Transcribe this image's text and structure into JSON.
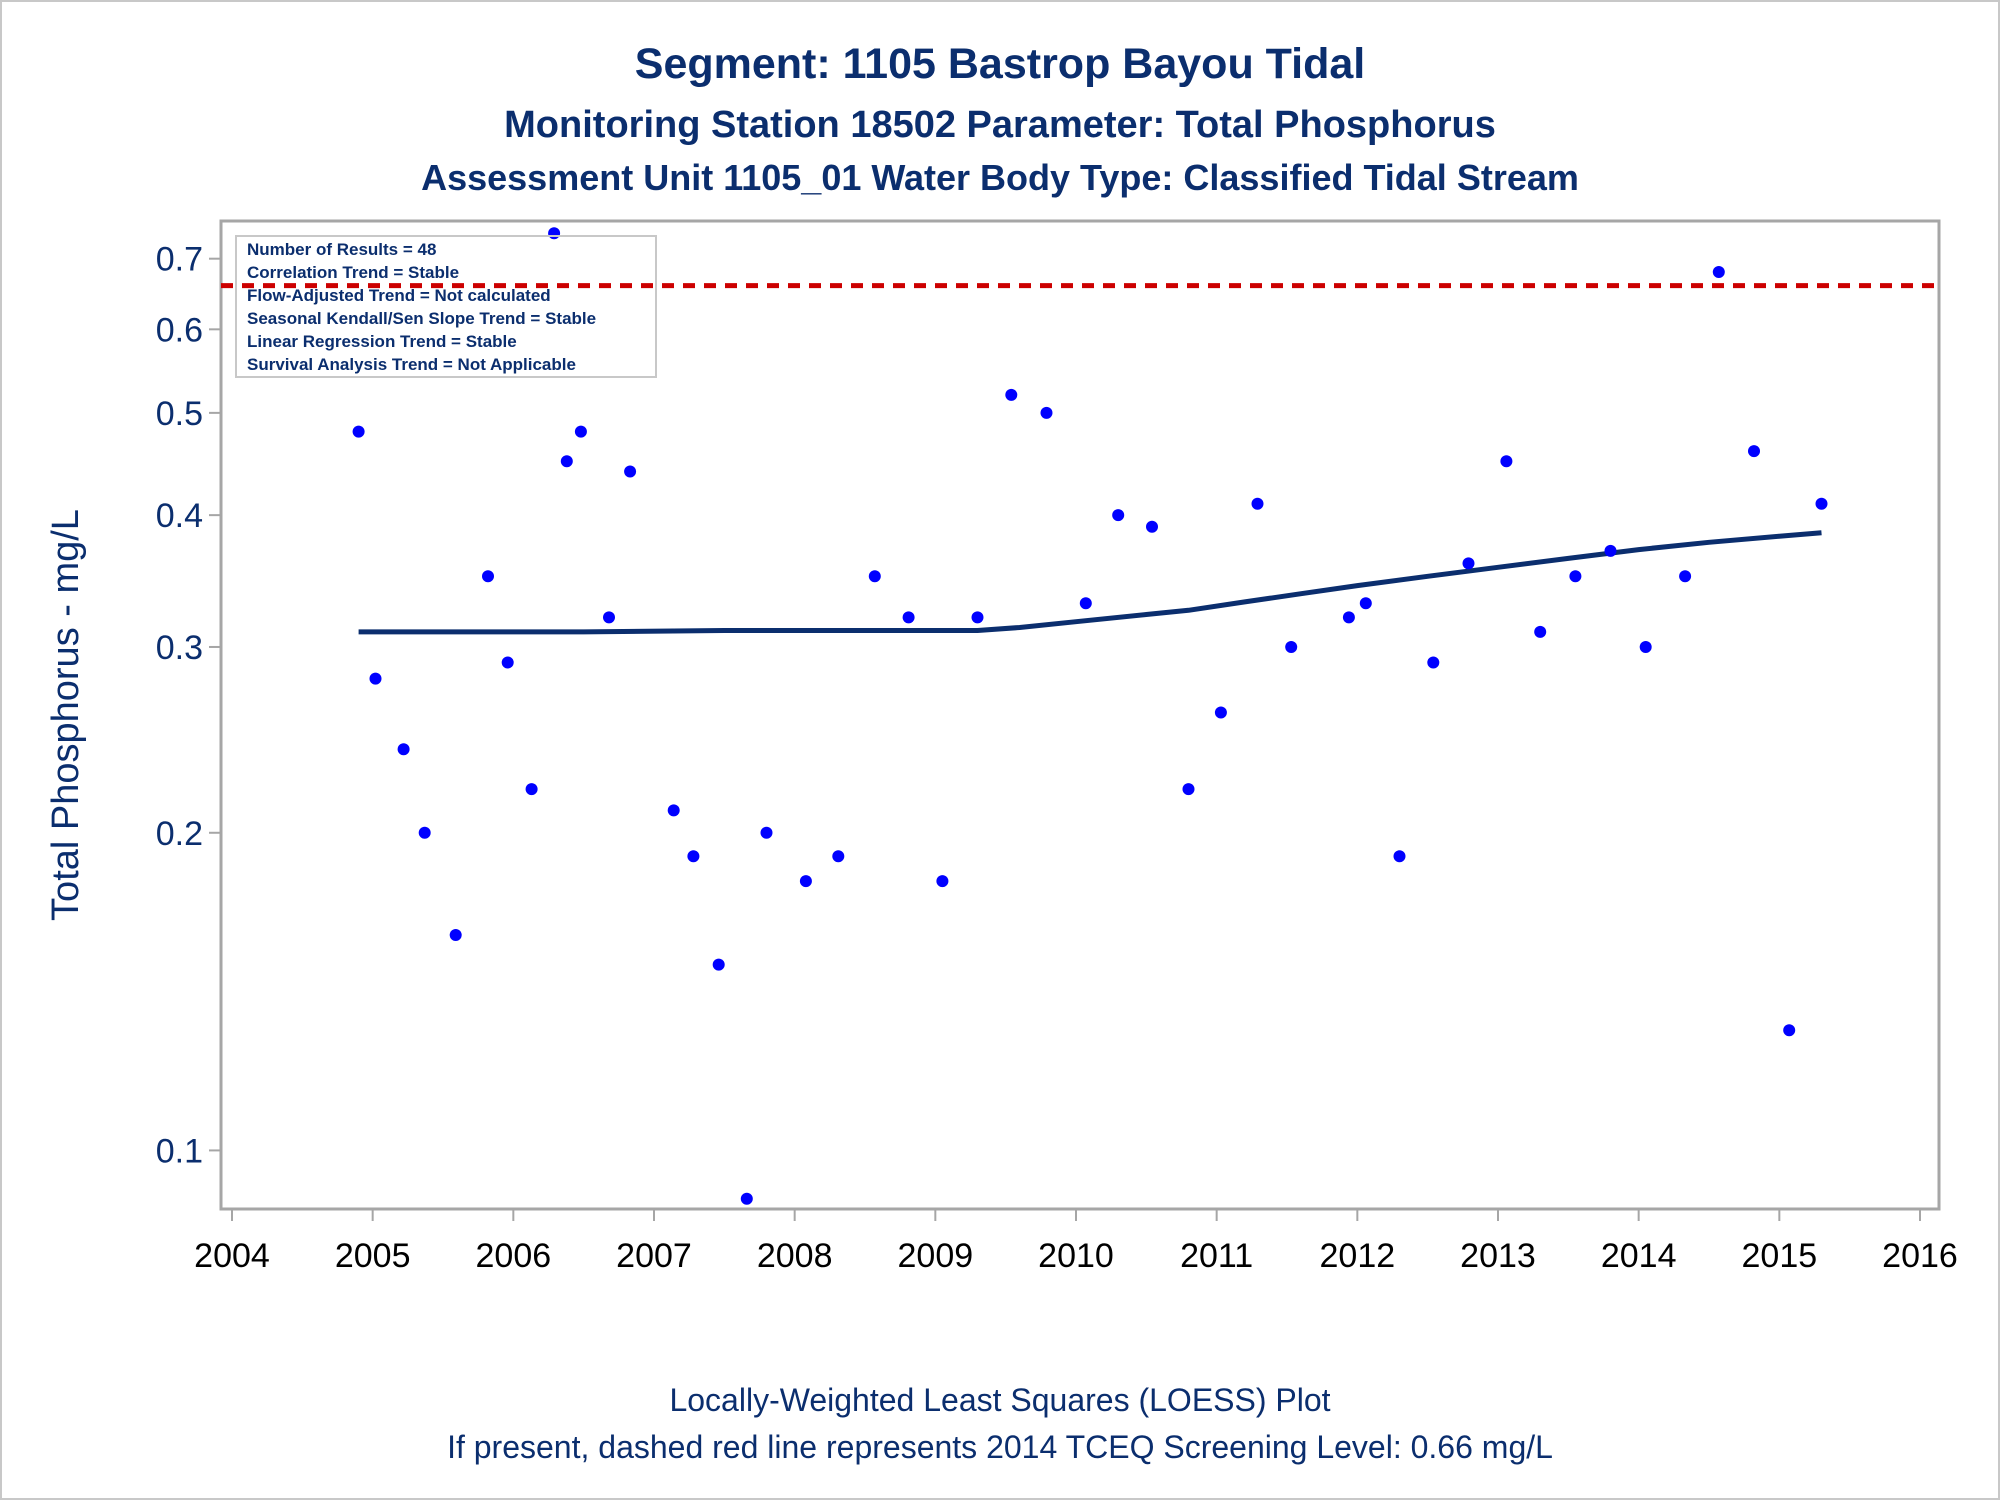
{
  "chart_data": {
    "type": "scatter",
    "title": "Segment: 1105  Bastrop Bayou Tidal",
    "subtitle": "Monitoring Station 18502 Parameter: Total Phosphorus",
    "subtitle2": "Assessment Unit 1105_01   Water Body Type: Classified Tidal Stream",
    "xlabel": "",
    "ylabel": "Total Phosphorus - mg/L",
    "y_scale": "log",
    "xlim": [
      2004,
      2016
    ],
    "ylim": [
      0.088,
      0.76
    ],
    "x_ticks": [
      "2004",
      "2005",
      "2006",
      "2007",
      "2008",
      "2009",
      "2010",
      "2011",
      "2012",
      "2013",
      "2014",
      "2015",
      "2016"
    ],
    "y_ticks": [
      {
        "value": 0.1,
        "label": "0.1"
      },
      {
        "value": 0.2,
        "label": "0.2"
      },
      {
        "value": 0.3,
        "label": "0.3"
      },
      {
        "value": 0.4,
        "label": "0.4"
      },
      {
        "value": 0.5,
        "label": "0.5"
      },
      {
        "value": 0.6,
        "label": "0.6"
      },
      {
        "value": 0.7,
        "label": "0.7"
      }
    ],
    "screening_level": 0.66,
    "stats_box": [
      "Number of Results = 48",
      "Correlation Trend = Stable",
      "Flow-Adjusted Trend = Not calculated",
      "Seasonal Kendall/Sen Slope Trend = Stable",
      "Linear Regression Trend = Stable",
      "Survival Analysis Trend = Not Applicable"
    ],
    "footer": [
      "Locally-Weighted Least Squares (LOESS) Plot",
      "If present, dashed red line represents 2014 TCEQ Screening Level: 0.66 mg/L"
    ],
    "points": [
      {
        "x": 2004.9,
        "y": 0.48
      },
      {
        "x": 2005.02,
        "y": 0.28
      },
      {
        "x": 2005.22,
        "y": 0.24
      },
      {
        "x": 2005.37,
        "y": 0.2
      },
      {
        "x": 2005.59,
        "y": 0.16
      },
      {
        "x": 2005.82,
        "y": 0.35
      },
      {
        "x": 2005.96,
        "y": 0.29
      },
      {
        "x": 2006.13,
        "y": 0.22
      },
      {
        "x": 2006.29,
        "y": 0.74
      },
      {
        "x": 2006.38,
        "y": 0.45
      },
      {
        "x": 2006.48,
        "y": 0.48
      },
      {
        "x": 2006.68,
        "y": 0.32
      },
      {
        "x": 2006.83,
        "y": 0.44
      },
      {
        "x": 2007.14,
        "y": 0.21
      },
      {
        "x": 2007.28,
        "y": 0.19
      },
      {
        "x": 2007.46,
        "y": 0.15
      },
      {
        "x": 2007.66,
        "y": 0.09
      },
      {
        "x": 2007.8,
        "y": 0.2
      },
      {
        "x": 2008.08,
        "y": 0.18
      },
      {
        "x": 2008.31,
        "y": 0.19
      },
      {
        "x": 2008.57,
        "y": 0.35
      },
      {
        "x": 2008.81,
        "y": 0.32
      },
      {
        "x": 2009.05,
        "y": 0.18
      },
      {
        "x": 2009.3,
        "y": 0.32
      },
      {
        "x": 2009.54,
        "y": 0.52
      },
      {
        "x": 2009.79,
        "y": 0.5
      },
      {
        "x": 2010.07,
        "y": 0.33
      },
      {
        "x": 2010.3,
        "y": 0.4
      },
      {
        "x": 2010.54,
        "y": 0.39
      },
      {
        "x": 2010.8,
        "y": 0.22
      },
      {
        "x": 2011.03,
        "y": 0.26
      },
      {
        "x": 2011.29,
        "y": 0.41
      },
      {
        "x": 2011.53,
        "y": 0.3
      },
      {
        "x": 2011.94,
        "y": 0.32
      },
      {
        "x": 2012.06,
        "y": 0.33
      },
      {
        "x": 2012.3,
        "y": 0.19
      },
      {
        "x": 2012.54,
        "y": 0.29
      },
      {
        "x": 2012.79,
        "y": 0.36
      },
      {
        "x": 2013.06,
        "y": 0.45
      },
      {
        "x": 2013.3,
        "y": 0.31
      },
      {
        "x": 2013.55,
        "y": 0.35
      },
      {
        "x": 2013.8,
        "y": 0.37
      },
      {
        "x": 2014.05,
        "y": 0.3
      },
      {
        "x": 2014.33,
        "y": 0.35
      },
      {
        "x": 2014.57,
        "y": 0.68
      },
      {
        "x": 2014.82,
        "y": 0.46
      },
      {
        "x": 2015.07,
        "y": 0.13
      },
      {
        "x": 2015.3,
        "y": 0.41
      }
    ],
    "loess": [
      {
        "x": 2004.9,
        "y": 0.31
      },
      {
        "x": 2005.5,
        "y": 0.31
      },
      {
        "x": 2006.5,
        "y": 0.31
      },
      {
        "x": 2007.5,
        "y": 0.311
      },
      {
        "x": 2008.5,
        "y": 0.311
      },
      {
        "x": 2009.3,
        "y": 0.311
      },
      {
        "x": 2009.6,
        "y": 0.313
      },
      {
        "x": 2010.0,
        "y": 0.317
      },
      {
        "x": 2010.5,
        "y": 0.322
      },
      {
        "x": 2010.8,
        "y": 0.325
      },
      {
        "x": 2011.2,
        "y": 0.331
      },
      {
        "x": 2011.6,
        "y": 0.337
      },
      {
        "x": 2012.0,
        "y": 0.343
      },
      {
        "x": 2012.5,
        "y": 0.35
      },
      {
        "x": 2013.0,
        "y": 0.357
      },
      {
        "x": 2013.5,
        "y": 0.364
      },
      {
        "x": 2014.0,
        "y": 0.371
      },
      {
        "x": 2014.5,
        "y": 0.377
      },
      {
        "x": 2015.0,
        "y": 0.382
      },
      {
        "x": 2015.3,
        "y": 0.385
      }
    ],
    "colors": {
      "text": "#0b2e6e",
      "points": "#0000ff",
      "loess": "#0b2e6e",
      "screening": "#cc0000",
      "frame": "#a6a6a6"
    }
  }
}
